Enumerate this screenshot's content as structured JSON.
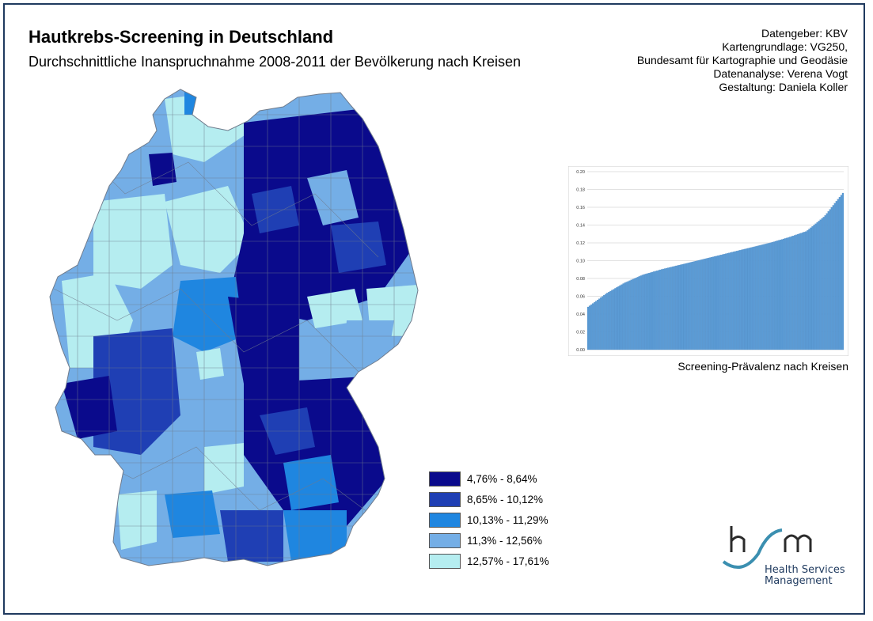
{
  "title": "Hautkrebs-Screening in Deutschland",
  "subtitle": "Durchschnittliche Inanspruchnahme 2008-2011 der Bevölkerung nach Kreisen",
  "credits": [
    "Datengeber: KBV",
    "Kartengrundlage: VG250,",
    "Bundesamt für Kartographie und Geodäsie",
    "Datenanalyse: Verena Vogt",
    "Gestaltung: Daniela Koller"
  ],
  "legend": [
    {
      "label": "4,76% - 8,64%",
      "color": "#0a0a8c"
    },
    {
      "label": "8,65% - 10,12%",
      "color": "#1f3fb4"
    },
    {
      "label": "10,13% - 11,29%",
      "color": "#1f86e0"
    },
    {
      "label": "11,3% - 12,56%",
      "color": "#74aee6"
    },
    {
      "label": "12,57% - 17,61%",
      "color": "#b5edf0"
    }
  ],
  "chart_caption": "Screening-Prävalenz nach Kreisen",
  "chart_data": {
    "type": "bar",
    "title": "",
    "xlabel": "",
    "ylabel": "",
    "ylim": [
      0,
      0.2
    ],
    "yticks": [
      "0.00",
      "0.02",
      "0.04",
      "0.06",
      "0.08",
      "0.10",
      "0.12",
      "0.14",
      "0.16",
      "0.18",
      "0.20"
    ],
    "sorted_value_profile": [
      0.048,
      0.063,
      0.075,
      0.084,
      0.09,
      0.095,
      0.1,
      0.105,
      0.11,
      0.115,
      0.12,
      0.126,
      0.133,
      0.15,
      0.176
    ],
    "bar_color": "#5b9bd5",
    "grid": true
  },
  "logo": {
    "mark": "hsm",
    "line1": "Health Services",
    "line2": "Management"
  }
}
